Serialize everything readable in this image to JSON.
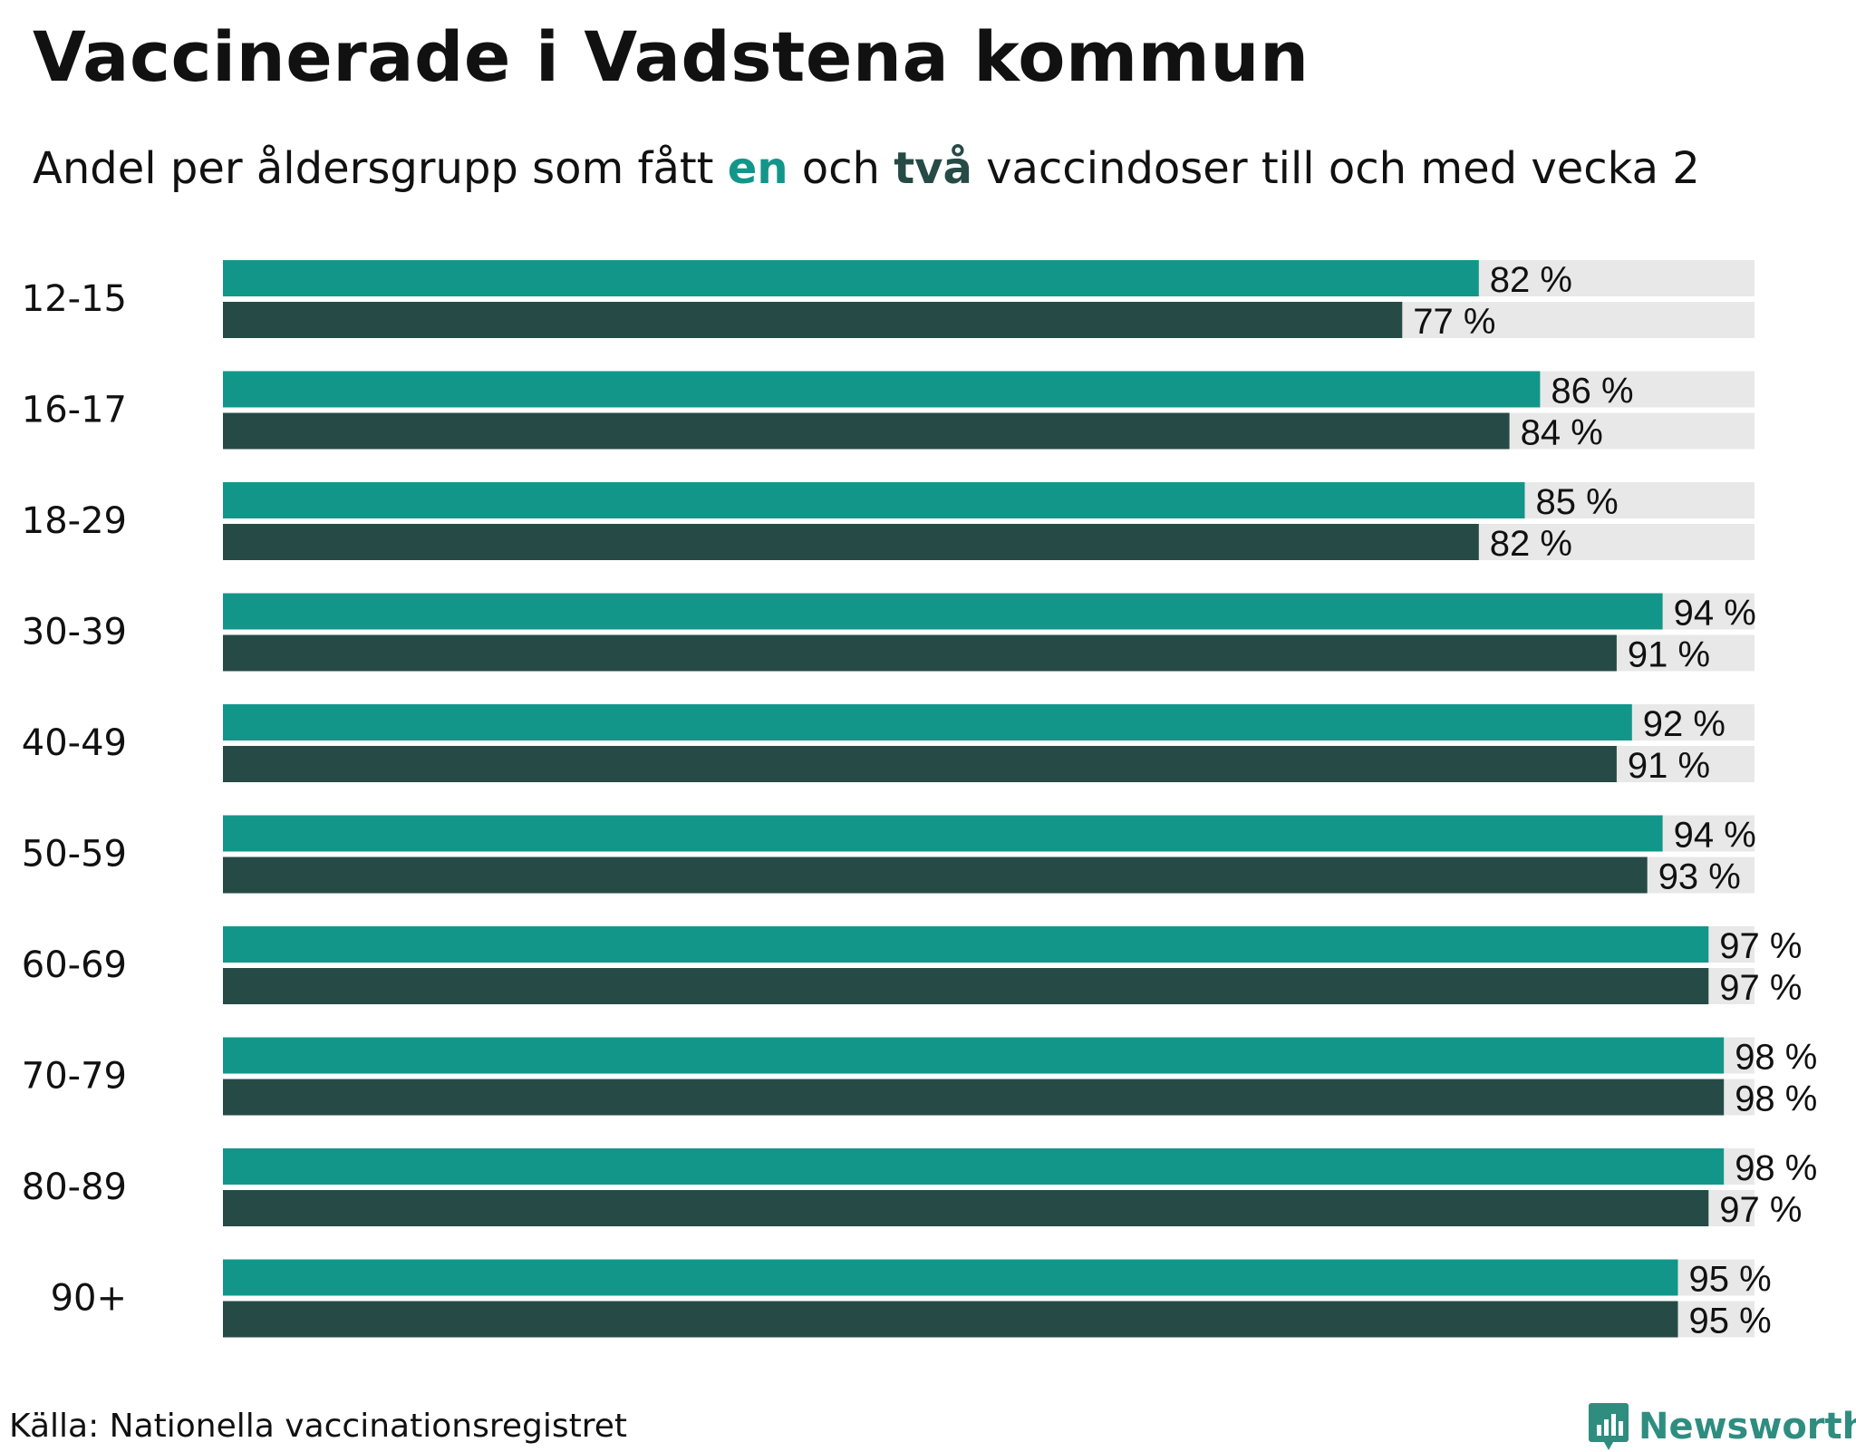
{
  "chart_data": {
    "type": "bar",
    "orientation": "horizontal",
    "title": "Vaccinerade i Vadstena kommun",
    "subtitle": {
      "prefix": "Andel per åldersgrupp som fått ",
      "one": "en",
      "middle": " och ",
      "two": "två",
      "suffix": " vaccindoser till och med vecka 2"
    },
    "categories": [
      "12-15",
      "16-17",
      "18-29",
      "30-39",
      "40-49",
      "50-59",
      "60-69",
      "70-79",
      "80-89",
      "90+"
    ],
    "series": [
      {
        "name": "en",
        "color": "#13968a",
        "values": [
          82,
          86,
          85,
          94,
          92,
          94,
          97,
          98,
          98,
          95
        ]
      },
      {
        "name": "två",
        "color": "#264b47",
        "values": [
          77,
          84,
          82,
          91,
          91,
          93,
          97,
          98,
          97,
          95
        ]
      }
    ],
    "value_suffix": " %",
    "xlim": [
      0,
      100
    ],
    "background_bar_color": "#e8e8e8",
    "source": "Källa: Nationella vaccinationsregistret"
  },
  "brand": {
    "name": "Newsworthy",
    "icon": "newsworthy-logo-icon",
    "color": "#2f8d80"
  }
}
